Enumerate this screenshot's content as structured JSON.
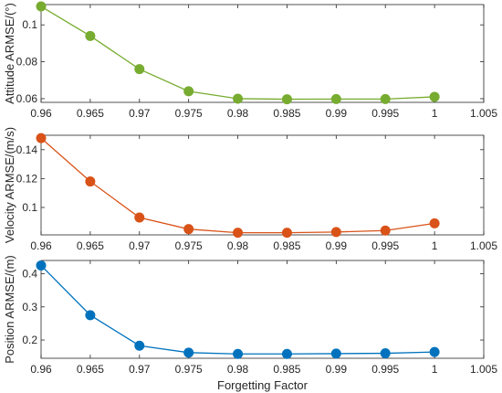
{
  "chart_data": [
    {
      "type": "line",
      "x": [
        0.96,
        0.965,
        0.97,
        0.975,
        0.98,
        0.985,
        0.99,
        0.995,
        1
      ],
      "series": [
        {
          "values": [
            0.11,
            0.094,
            0.076,
            0.064,
            0.06,
            0.0597,
            0.0598,
            0.0598,
            0.061
          ],
          "color": "#77AC30"
        }
      ],
      "xlim": [
        0.96,
        1.005
      ],
      "ylim": [
        0.058,
        0.111
      ],
      "xticks": [
        "0.96",
        "0.965",
        "0.97",
        "0.975",
        "0.98",
        "0.985",
        "0.99",
        "0.995",
        "1",
        "1.005"
      ],
      "yticks": [
        0.06,
        0.08,
        0.1
      ],
      "ytick_labels": [
        "0.06",
        "0.08",
        "0.1"
      ],
      "xlabel": "",
      "ylabel": "Attitude ARMSE/(°)",
      "grid": false
    },
    {
      "type": "line",
      "x": [
        0.96,
        0.965,
        0.97,
        0.975,
        0.98,
        0.985,
        0.99,
        0.995,
        1
      ],
      "series": [
        {
          "values": [
            0.148,
            0.118,
            0.093,
            0.085,
            0.0825,
            0.0825,
            0.083,
            0.084,
            0.089
          ],
          "color": "#D95319"
        }
      ],
      "xlim": [
        0.96,
        1.005
      ],
      "ylim": [
        0.081,
        0.15
      ],
      "xticks": [
        "0.96",
        "0.965",
        "0.97",
        "0.975",
        "0.98",
        "0.985",
        "0.99",
        "0.995",
        "1",
        "1.005"
      ],
      "yticks": [
        0.1,
        0.12,
        0.14
      ],
      "ytick_labels": [
        "0.1",
        "0.12",
        "0.14"
      ],
      "xlabel": "",
      "ylabel": "Velocity ARMSE/(m/s)",
      "grid": false
    },
    {
      "type": "line",
      "x": [
        0.96,
        0.965,
        0.97,
        0.975,
        0.98,
        0.985,
        0.99,
        0.995,
        1
      ],
      "series": [
        {
          "values": [
            0.425,
            0.275,
            0.183,
            0.162,
            0.158,
            0.158,
            0.159,
            0.16,
            0.164
          ],
          "color": "#0072BD"
        }
      ],
      "xlim": [
        0.96,
        1.005
      ],
      "ylim": [
        0.145,
        0.44
      ],
      "xticks": [
        "0.96",
        "0.965",
        "0.97",
        "0.975",
        "0.98",
        "0.985",
        "0.99",
        "0.995",
        "1",
        "1.005"
      ],
      "yticks": [
        0.2,
        0.3,
        0.4
      ],
      "ytick_labels": [
        "0.2",
        "0.3",
        "0.4"
      ],
      "xlabel": "Forgetting Factor",
      "ylabel": "Position ARMSE/(m)",
      "grid": false
    }
  ]
}
